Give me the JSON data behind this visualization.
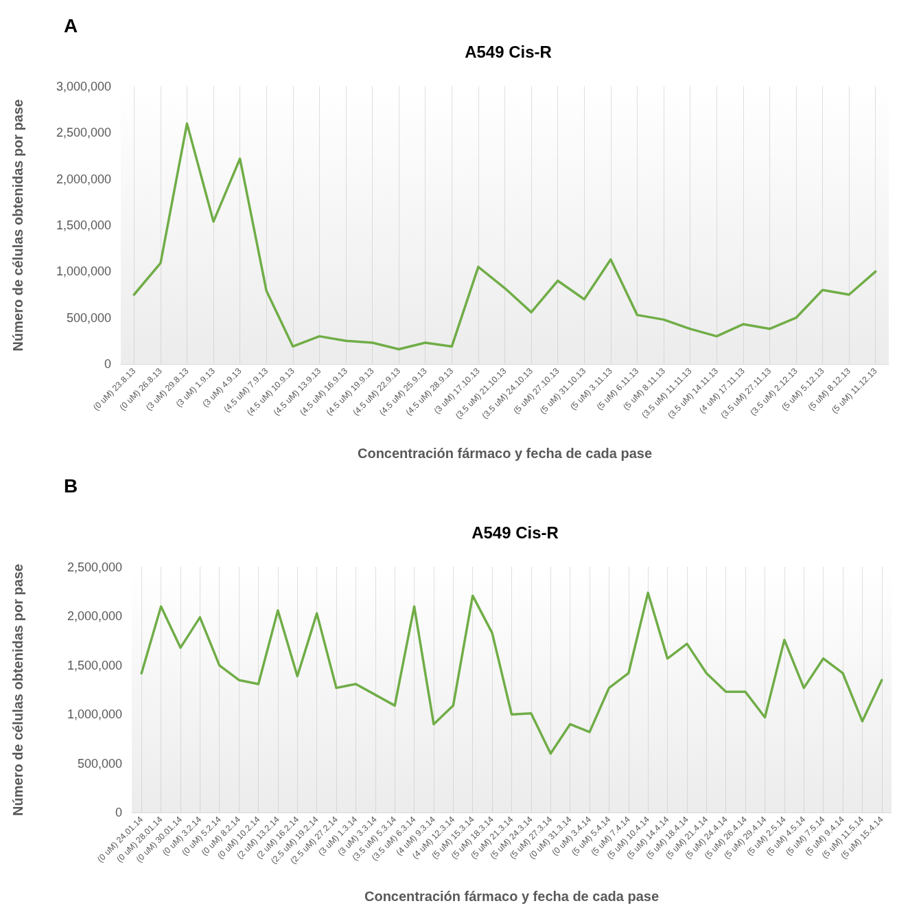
{
  "chart_data": [
    {
      "type": "line",
      "title": "A549 Cis-R",
      "xlabel": "Concentración fármaco y fecha de cada pase",
      "ylabel": "Número de células obtenidas por pase",
      "annotations": [
        "A"
      ],
      "categories": [
        "(0 uM) 23.8.13",
        "(0 uM) 26.8.13",
        "(3 uM) 29.8.13",
        "(3 uM) 1.9.13",
        "(3 uM) 4.9.13",
        "(4.5 uM) 7.9.13",
        "(4.5 uM) 10.9.13",
        "(4.5 uM) 13.9.13",
        "(4.5 uM) 16.9.13",
        "(4.5 uM) 19.9.13",
        "(4.5 uM) 22.9.13",
        "(4.5 uM) 25.9.13",
        "(4.5 uM) 28.9.13",
        "(3 uM) 17.10.13",
        "(3.5 uM) 21.10.13",
        "(3.5 uM) 24.10.13",
        "(5 uM) 27.10.13",
        "(5 uM) 31.10.13",
        "(5 uM) 3.11.13",
        "(5 uM) 6.11.13",
        "(5 uM) 8.11.13",
        "(3.5 uM) 11.11.13",
        "(3.5 uM) 14.11.13",
        "(4 uM) 17.11.13",
        "(3.5 uM) 27.11.13",
        "(3.5 uM) 2.12.13",
        "(5 uM) 5.12.13",
        "(5 uM) 8.12.13",
        "(5 uM) 11.12.13"
      ],
      "series": [
        {
          "color": "#70ad47",
          "values": [
            750000,
            1090000,
            2600000,
            1540000,
            2220000,
            790000,
            190000,
            300000,
            250000,
            230000,
            160000,
            230000,
            190000,
            1050000,
            820000,
            560000,
            900000,
            700000,
            1130000,
            530000,
            480000,
            380000,
            300000,
            430000,
            380000,
            500000,
            800000,
            750000,
            1000000
          ]
        }
      ],
      "ylim": [
        0,
        3000000
      ],
      "yticks": [
        {
          "value": 0,
          "label": "0"
        },
        {
          "value": 500000,
          "label": "500,000"
        },
        {
          "value": 1000000,
          "label": "1,000,000"
        },
        {
          "value": 1500000,
          "label": "1,500,000"
        },
        {
          "value": 2000000,
          "label": "2,000,000"
        },
        {
          "value": 2500000,
          "label": "2,500,000"
        },
        {
          "value": 3000000,
          "label": "3,000,000"
        }
      ],
      "grid": "x",
      "marker": "none",
      "line_style": "solid"
    },
    {
      "type": "line",
      "title": "A549 Cis-R",
      "xlabel": "Concentración fármaco y fecha de cada pase",
      "ylabel": "Número de células obtenidas por pase",
      "annotations": [
        "B"
      ],
      "categories": [
        "(0 uM) 24.01.14",
        "(0 uM) 28.01.14",
        "(0 uM) 30.01.14",
        "(0 uM) 3.2.14",
        "(0 uM) 5.2.14",
        "(0 uM) 8.2.14",
        "(0 uM) 10.2.14",
        "(2 uM) 13.2.14",
        "(2 uM) 16.2.14",
        "(2.5 uM) 19.2.14",
        "(2.5 uM) 27.2.14",
        "(3 uM) 1.3.14",
        "(3 uM) 3.3.14",
        "(3.5 uM) 5.3.14",
        "(3.5 uM) 6.3.14",
        "(4 uM) 9.3.14",
        "(4 uM) 12.3.14",
        "(5 uM) 15.3.14",
        "(5 uM) 18.3.14",
        "(5 uM) 21.3.14",
        "(5 uM) 24.3.14",
        "(5 uM) 27.3.14",
        "(0 uM) 31.3.14",
        "(0 uM) 3.4.14",
        "(5 uM) 5.4.14",
        "(5 uM) 7.4.14",
        "(5 uM) 10.4.14",
        "(5 uM) 14.4.14",
        "(5 uM) 18.4.14",
        "(5 uM) 21.4.14",
        "(5 uM) 24.4.14",
        "(5 uM) 26.4.14",
        "(5 uM) 29.4.14",
        "(5 uM) 2.5.14",
        "(5 uM) 4.5.14",
        "(5 uM) 7.5.14",
        "(5 uM) 9.4.14",
        "(5 uM) 11.5.14",
        "(5 uM) 15.4.14"
      ],
      "series": [
        {
          "color": "#70ad47",
          "values": [
            1420000,
            2100000,
            1680000,
            1990000,
            1500000,
            1350000,
            1310000,
            2060000,
            1390000,
            2030000,
            1270000,
            1310000,
            1200000,
            1090000,
            2100000,
            900000,
            1090000,
            2210000,
            1830000,
            1000000,
            1010000,
            600000,
            900000,
            820000,
            1270000,
            1420000,
            2240000,
            1570000,
            1720000,
            1420000,
            1230000,
            1230000,
            970000,
            1760000,
            1270000,
            1570000,
            1420000,
            930000,
            1350000
          ]
        }
      ],
      "ylim": [
        0,
        2500000
      ],
      "yticks": [
        {
          "value": 0,
          "label": "0"
        },
        {
          "value": 500000,
          "label": "500,000"
        },
        {
          "value": 1000000,
          "label": "1,000,000"
        },
        {
          "value": 1500000,
          "label": "1,500,000"
        },
        {
          "value": 2000000,
          "label": "2,000,000"
        },
        {
          "value": 2500000,
          "label": "2,500,000"
        }
      ],
      "grid": "x",
      "marker": "none",
      "line_style": "solid"
    }
  ]
}
